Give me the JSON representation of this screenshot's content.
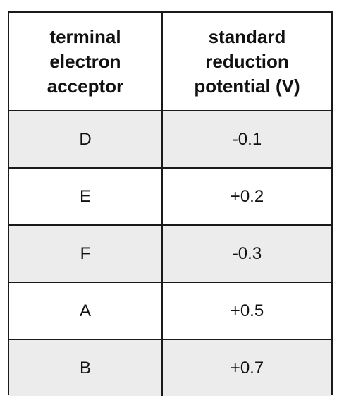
{
  "table": {
    "headers": [
      [
        "terminal",
        "electron",
        "acceptor"
      ],
      [
        "standard",
        "reduction",
        "potential (V)"
      ]
    ],
    "rows": [
      {
        "acceptor": "D",
        "potential": "-0.1"
      },
      {
        "acceptor": "E",
        "potential": "+0.2"
      },
      {
        "acceptor": "F",
        "potential": "-0.3"
      },
      {
        "acceptor": "A",
        "potential": "+0.5"
      },
      {
        "acceptor": "B",
        "potential": "+0.7"
      }
    ],
    "colors": {
      "shaded_row": "#ececec",
      "plain_row": "#ffffff",
      "border": "#1a1a1a"
    }
  }
}
